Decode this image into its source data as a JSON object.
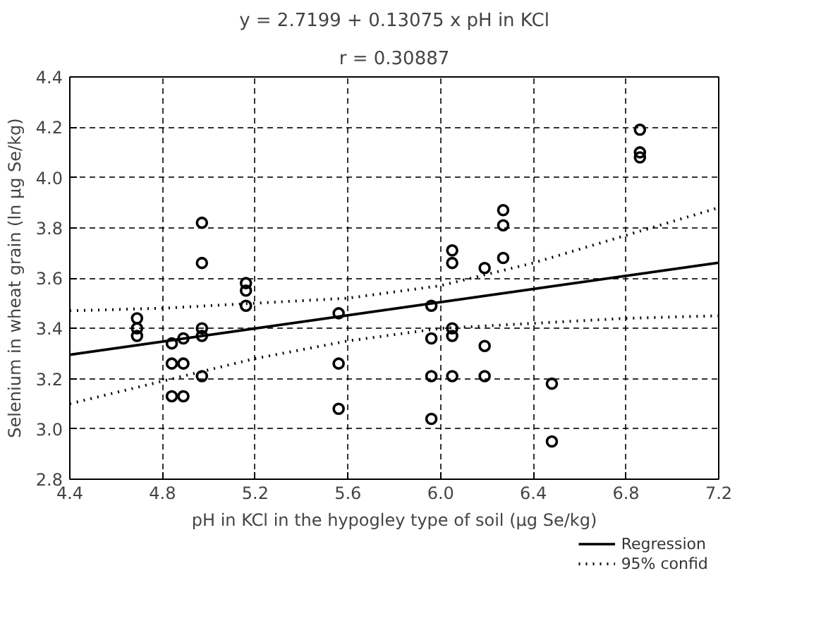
{
  "chart_data": {
    "type": "scatter",
    "title": "y = 2.7199 + 0.13075 x pH in KCl",
    "subtitle": "r = 0.30887",
    "xlabel": "pH in KCl in the hypogley type of soil (µg Se/kg)",
    "ylabel": "Selenium in wheat grain (ln µg Se/kg)",
    "xlim": [
      4.4,
      7.2
    ],
    "ylim": [
      2.8,
      4.4
    ],
    "xticks": [
      4.4,
      4.8,
      5.2,
      5.6,
      {
        "value": 6,
        "label": "6.0"
      },
      6.4,
      6.8,
      7.2
    ],
    "yticks": [
      2.8,
      {
        "value": 3,
        "label": "3.0"
      },
      3.2,
      3.4,
      3.6,
      3.8,
      {
        "value": 4,
        "label": "4.0"
      },
      4.2,
      4.4
    ],
    "grid": true,
    "legend": "bottom right",
    "series": [
      {
        "color": "#000000",
        "marker": "circle",
        "x": [
          4.69,
          4.69,
          4.69,
          4.84,
          4.84,
          4.84,
          4.89,
          4.89,
          4.89,
          4.97,
          4.97,
          4.97,
          4.97,
          4.97,
          5.16,
          5.16,
          5.16,
          5.56,
          5.56,
          5.56,
          5.96,
          5.96,
          5.96,
          5.96,
          6.05,
          6.05,
          6.05,
          6.05,
          6.05,
          6.19,
          6.19,
          6.19,
          6.27,
          6.27,
          6.27,
          6.48,
          6.48,
          6.86,
          6.86,
          6.86
        ],
        "values": [
          3.44,
          3.4,
          3.37,
          3.34,
          3.26,
          3.13,
          3.36,
          3.26,
          3.13,
          3.82,
          3.66,
          3.4,
          3.37,
          3.21,
          3.58,
          3.55,
          3.49,
          3.46,
          3.26,
          3.08,
          3.49,
          3.36,
          3.21,
          3.04,
          3.71,
          3.66,
          3.4,
          3.37,
          3.21,
          3.64,
          3.33,
          3.21,
          3.87,
          3.81,
          3.68,
          3.18,
          2.95,
          4.19,
          4.1,
          4.08
        ]
      },
      {
        "type": "line",
        "name": "Regression",
        "color": "#000000",
        "line_style": "solid",
        "x": [
          4.4,
          7.2
        ],
        "values": [
          3.295,
          3.661
        ]
      },
      {
        "type": "line",
        "name": "95% confid",
        "color": "#000000",
        "line_style": "dotted",
        "x": [
          4.4,
          4.8,
          5.2,
          5.6,
          6.0,
          6.4,
          6.8,
          7.2
        ],
        "values": [
          3.47,
          3.48,
          3.5,
          3.52,
          3.57,
          3.66,
          3.77,
          3.88
        ]
      },
      {
        "type": "line",
        "color": "#000000",
        "line_style": "dotted",
        "x": [
          4.4,
          4.8,
          5.2,
          5.6,
          6.0,
          6.4,
          6.8,
          7.2
        ],
        "values": [
          3.1,
          3.19,
          3.28,
          3.35,
          3.4,
          3.42,
          3.44,
          3.45
        ]
      }
    ]
  }
}
